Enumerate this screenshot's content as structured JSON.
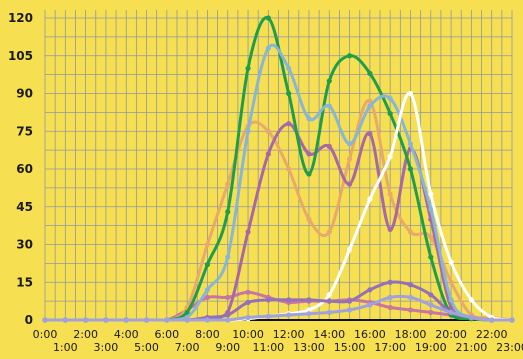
{
  "chart_data": {
    "type": "line",
    "title": "",
    "xlabel": "",
    "ylabel": "",
    "ylim": [
      0,
      120
    ],
    "yticks": [
      0,
      15,
      30,
      45,
      60,
      75,
      90,
      105,
      120
    ],
    "xlim": [
      0,
      23
    ],
    "xtick_labels": [
      "0:00",
      "1:00",
      "2:00",
      "3:00",
      "4:00",
      "5:00",
      "6:00",
      "7:00",
      "8:00",
      "9:00",
      "10:00",
      "11:00",
      "12:00",
      "13:00",
      "14:00",
      "15:00",
      "16:00",
      "17:00",
      "18:00",
      "19:00",
      "20:00",
      "21:00",
      "22:00",
      "23:00"
    ],
    "grid": true,
    "legend": "none",
    "background": "#f7df52",
    "grid_color": "#8f97a6",
    "axis_color": "#111111",
    "series": [
      {
        "color": "#c875a3",
        "values": [
          0,
          0,
          0,
          0,
          0,
          0,
          0,
          4,
          9,
          9,
          11,
          9,
          7,
          7.5,
          7.5,
          8,
          7,
          5,
          4,
          3,
          2,
          1,
          0.5,
          0
        ]
      },
      {
        "color": "#e8a96a",
        "values": [
          0,
          0,
          0,
          0,
          0,
          0,
          0,
          5,
          30,
          54,
          77,
          75,
          60,
          40,
          35,
          64,
          87,
          50,
          35,
          33,
          15,
          2,
          1,
          0
        ]
      },
      {
        "color": "#a868a6",
        "values": [
          0,
          0,
          0,
          0,
          0,
          0,
          0,
          0,
          0.5,
          3,
          35,
          66,
          78,
          66,
          69,
          54,
          74,
          36,
          68,
          40,
          5,
          1,
          0,
          0
        ]
      },
      {
        "color": "#1f9e4a",
        "values": [
          0,
          0,
          0,
          0,
          0,
          0,
          0,
          3,
          22,
          43,
          100,
          120,
          90,
          58,
          95,
          105,
          98,
          82,
          60,
          25,
          2,
          0.5,
          0,
          0
        ]
      },
      {
        "color": "#86b7d7",
        "values": [
          0,
          0,
          0,
          0,
          0,
          0,
          0,
          1,
          12,
          25,
          75,
          108,
          100,
          80,
          85,
          70,
          85,
          88,
          70,
          44,
          8,
          1,
          0,
          0
        ]
      },
      {
        "color": "#ffffff",
        "values": [
          0,
          0,
          0,
          0,
          0,
          0,
          0,
          0,
          0,
          0,
          0.5,
          1.5,
          2.5,
          4,
          10,
          28,
          48,
          65,
          90,
          50,
          23,
          8,
          1,
          0
        ]
      },
      {
        "color": "#9470b8",
        "values": [
          0,
          0,
          0,
          0,
          0,
          0,
          0,
          0,
          1,
          2,
          7,
          8,
          8,
          8,
          7.5,
          7.5,
          12,
          15,
          14,
          10,
          3,
          1,
          0,
          0
        ]
      },
      {
        "color": "#9fa2dc",
        "values": [
          0,
          0,
          0,
          0,
          0,
          0,
          0,
          0,
          0,
          0,
          1,
          1.5,
          2,
          2.5,
          3,
          4,
          6,
          9,
          9,
          6,
          3,
          1,
          0,
          0
        ]
      }
    ]
  }
}
